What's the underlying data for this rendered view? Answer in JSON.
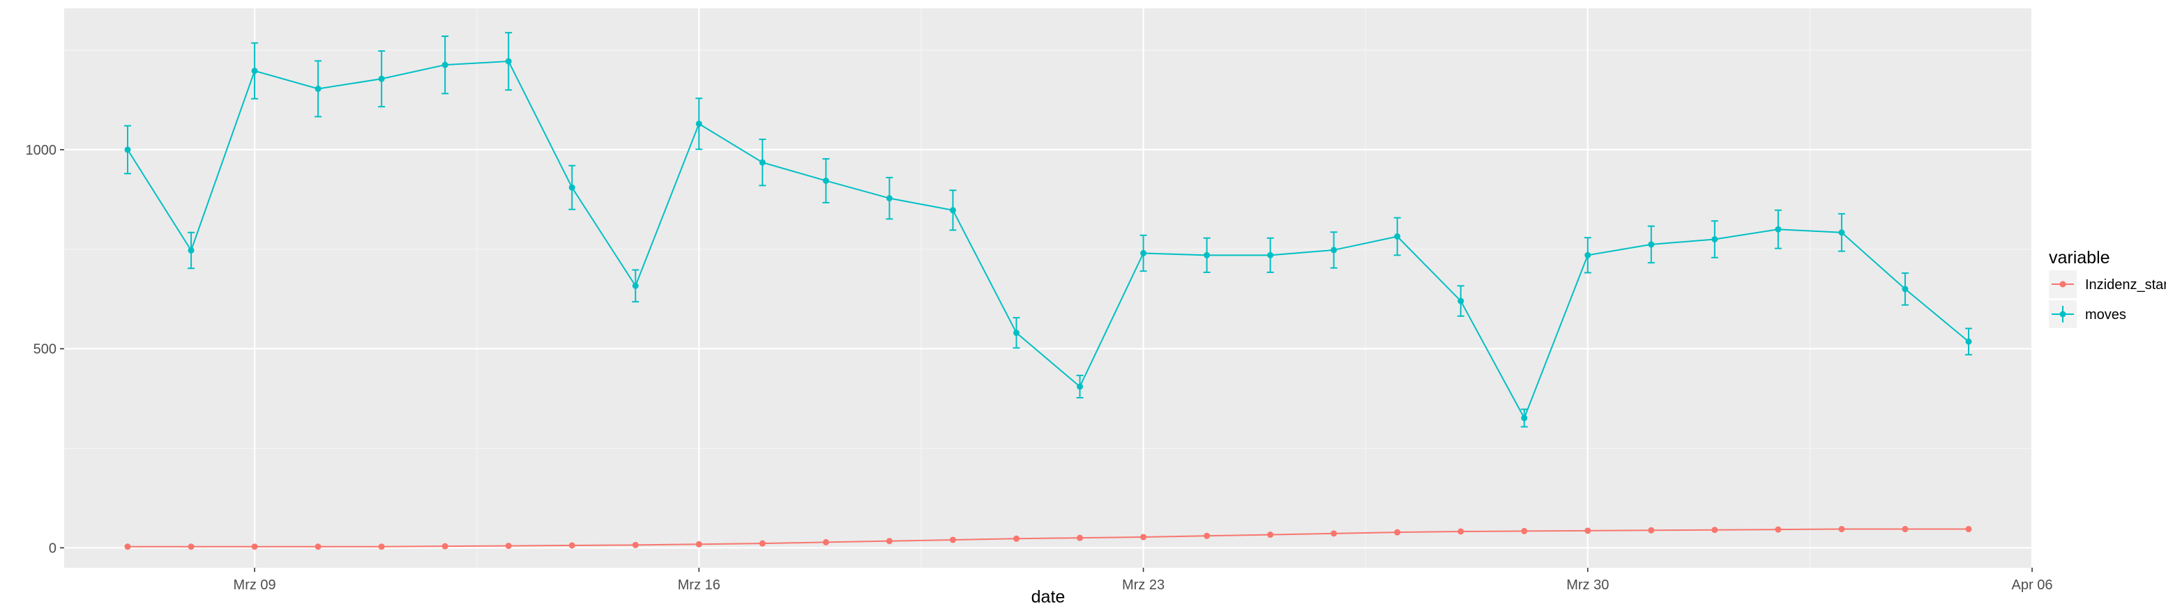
{
  "chart_data": {
    "type": "line",
    "title": "",
    "xlabel": "date",
    "ylabel": "",
    "x": [
      "2020-03-07",
      "2020-03-08",
      "2020-03-09",
      "2020-03-10",
      "2020-03-11",
      "2020-03-12",
      "2020-03-13",
      "2020-03-14",
      "2020-03-15",
      "2020-03-16",
      "2020-03-17",
      "2020-03-18",
      "2020-03-19",
      "2020-03-20",
      "2020-03-21",
      "2020-03-22",
      "2020-03-23",
      "2020-03-24",
      "2020-03-25",
      "2020-03-26",
      "2020-03-27",
      "2020-03-28",
      "2020-03-29",
      "2020-03-30",
      "2020-03-31",
      "2020-04-01",
      "2020-04-02",
      "2020-04-03",
      "2020-04-04",
      "2020-04-05"
    ],
    "xlim": [
      "2020-03-06",
      "2020-04-06"
    ],
    "ylim": [
      -50,
      1355
    ],
    "grid": true,
    "legend": {
      "title": "variable",
      "position": "right"
    },
    "x_ticks": [
      {
        "date": "2020-03-09",
        "label": "Mrz 09"
      },
      {
        "date": "2020-03-16",
        "label": "Mrz 16"
      },
      {
        "date": "2020-03-23",
        "label": "Mrz 23"
      },
      {
        "date": "2020-03-30",
        "label": "Mrz 30"
      },
      {
        "date": "2020-04-06",
        "label": "Apr 06"
      }
    ],
    "y_ticks": [
      {
        "value": 0,
        "label": "0"
      },
      {
        "value": 500,
        "label": "500"
      },
      {
        "value": 1000,
        "label": "1000"
      }
    ],
    "series": [
      {
        "name": "Inzidenz_start",
        "color": "#F8766D",
        "values": [
          3,
          3,
          3,
          3,
          3,
          4,
          5,
          6,
          7,
          9,
          11,
          14,
          17,
          20,
          23,
          25,
          27,
          30,
          33,
          36,
          39,
          41,
          42,
          43,
          44,
          45,
          46,
          47,
          47,
          47
        ]
      },
      {
        "name": "moves",
        "color": "#00BFC4",
        "values": [
          1000,
          747,
          1198,
          1153,
          1178,
          1213,
          1222,
          905,
          658,
          1065,
          968,
          922,
          878,
          848,
          540,
          405,
          740,
          735,
          735,
          748,
          782,
          620,
          326,
          735,
          762,
          775,
          800,
          792,
          650,
          518
        ],
        "errors": [
          60,
          45,
          70,
          70,
          70,
          72,
          72,
          55,
          40,
          64,
          58,
          55,
          52,
          50,
          38,
          28,
          45,
          43,
          43,
          45,
          47,
          38,
          22,
          44,
          46,
          46,
          48,
          47,
          40,
          33
        ]
      }
    ]
  }
}
